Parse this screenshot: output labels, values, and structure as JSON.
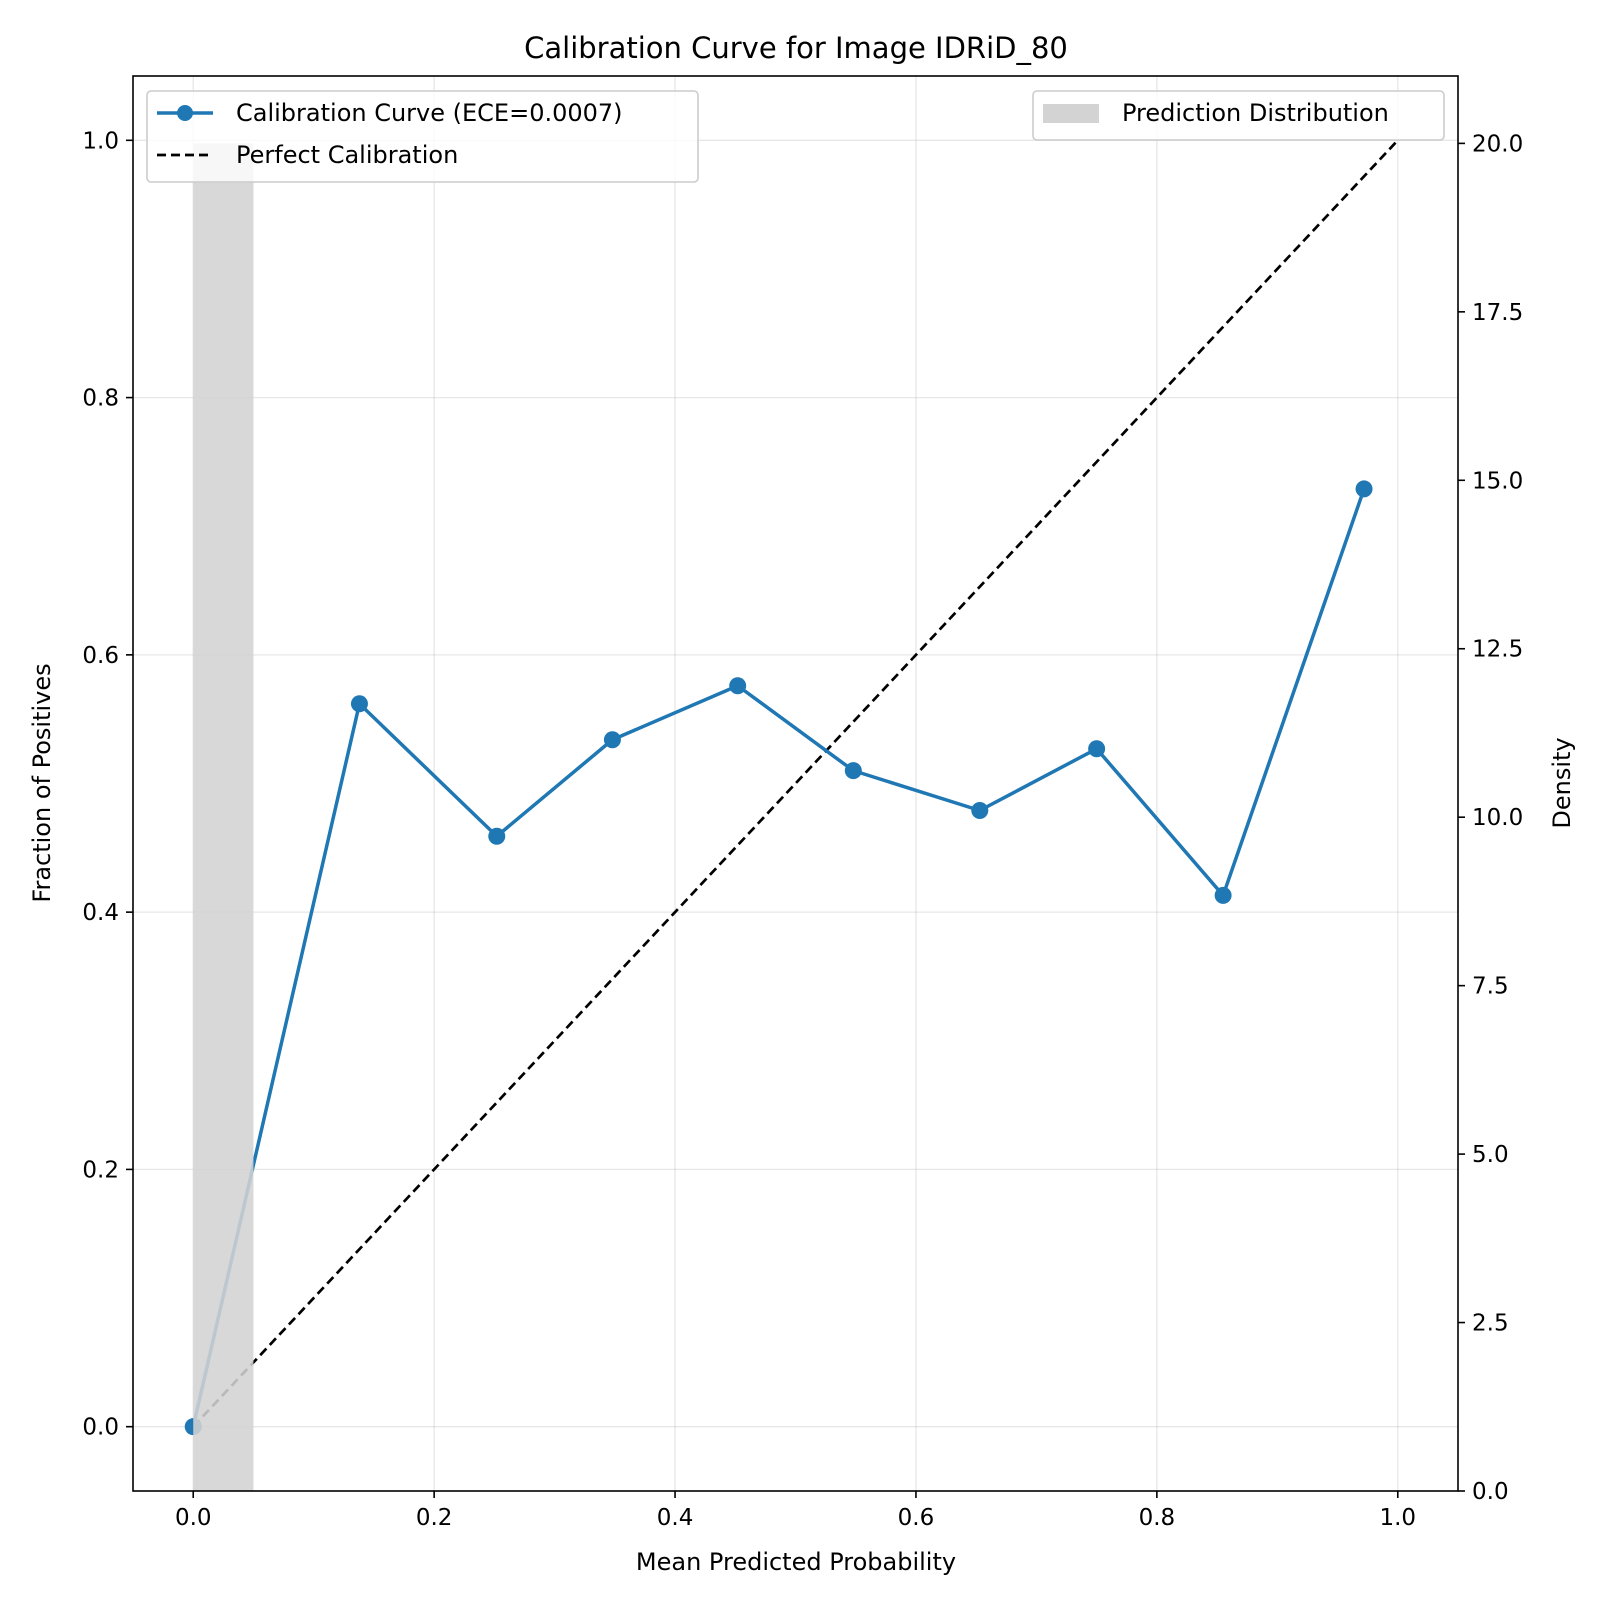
{
  "chart_data": {
    "type": "line",
    "title": "Calibration Curve for Image IDRiD_80",
    "xlabel": "Mean Predicted Probability",
    "ylabel": "Fraction of Positives",
    "y2label": "Density",
    "xlim": [
      -0.05,
      1.05
    ],
    "ylim": [
      -0.05,
      1.05
    ],
    "y2lim": [
      0,
      21
    ],
    "grid": true,
    "x_ticks": [
      "0.0",
      "0.2",
      "0.4",
      "0.6",
      "0.8",
      "1.0"
    ],
    "y_ticks": [
      "0.0",
      "0.2",
      "0.4",
      "0.6",
      "0.8",
      "1.0"
    ],
    "y2_ticks": [
      "0.0",
      "2.5",
      "5.0",
      "7.5",
      "10.0",
      "12.5",
      "15.0",
      "17.5",
      "20.0"
    ],
    "series": [
      {
        "name": "Calibration Curve (ECE=0.0007)",
        "style": "solid-marker",
        "color": "#1f77b4",
        "x": [
          0.0,
          0.138,
          0.252,
          0.348,
          0.452,
          0.548,
          0.653,
          0.75,
          0.855,
          0.972
        ],
        "y": [
          0.0,
          0.562,
          0.459,
          0.534,
          0.576,
          0.51,
          0.479,
          0.527,
          0.413,
          0.729
        ]
      },
      {
        "name": "Perfect Calibration",
        "style": "dashed",
        "color": "#000000",
        "x": [
          0.0,
          1.0
        ],
        "y": [
          0.0,
          1.0
        ]
      }
    ],
    "histogram": {
      "name": "Prediction Distribution",
      "color": "#d3d3d3",
      "axis": "right",
      "bins": [
        {
          "start": 0.0,
          "end": 0.05,
          "density": 20.0
        }
      ]
    },
    "legend_left": "upper-left",
    "legend_right": "upper-right"
  }
}
